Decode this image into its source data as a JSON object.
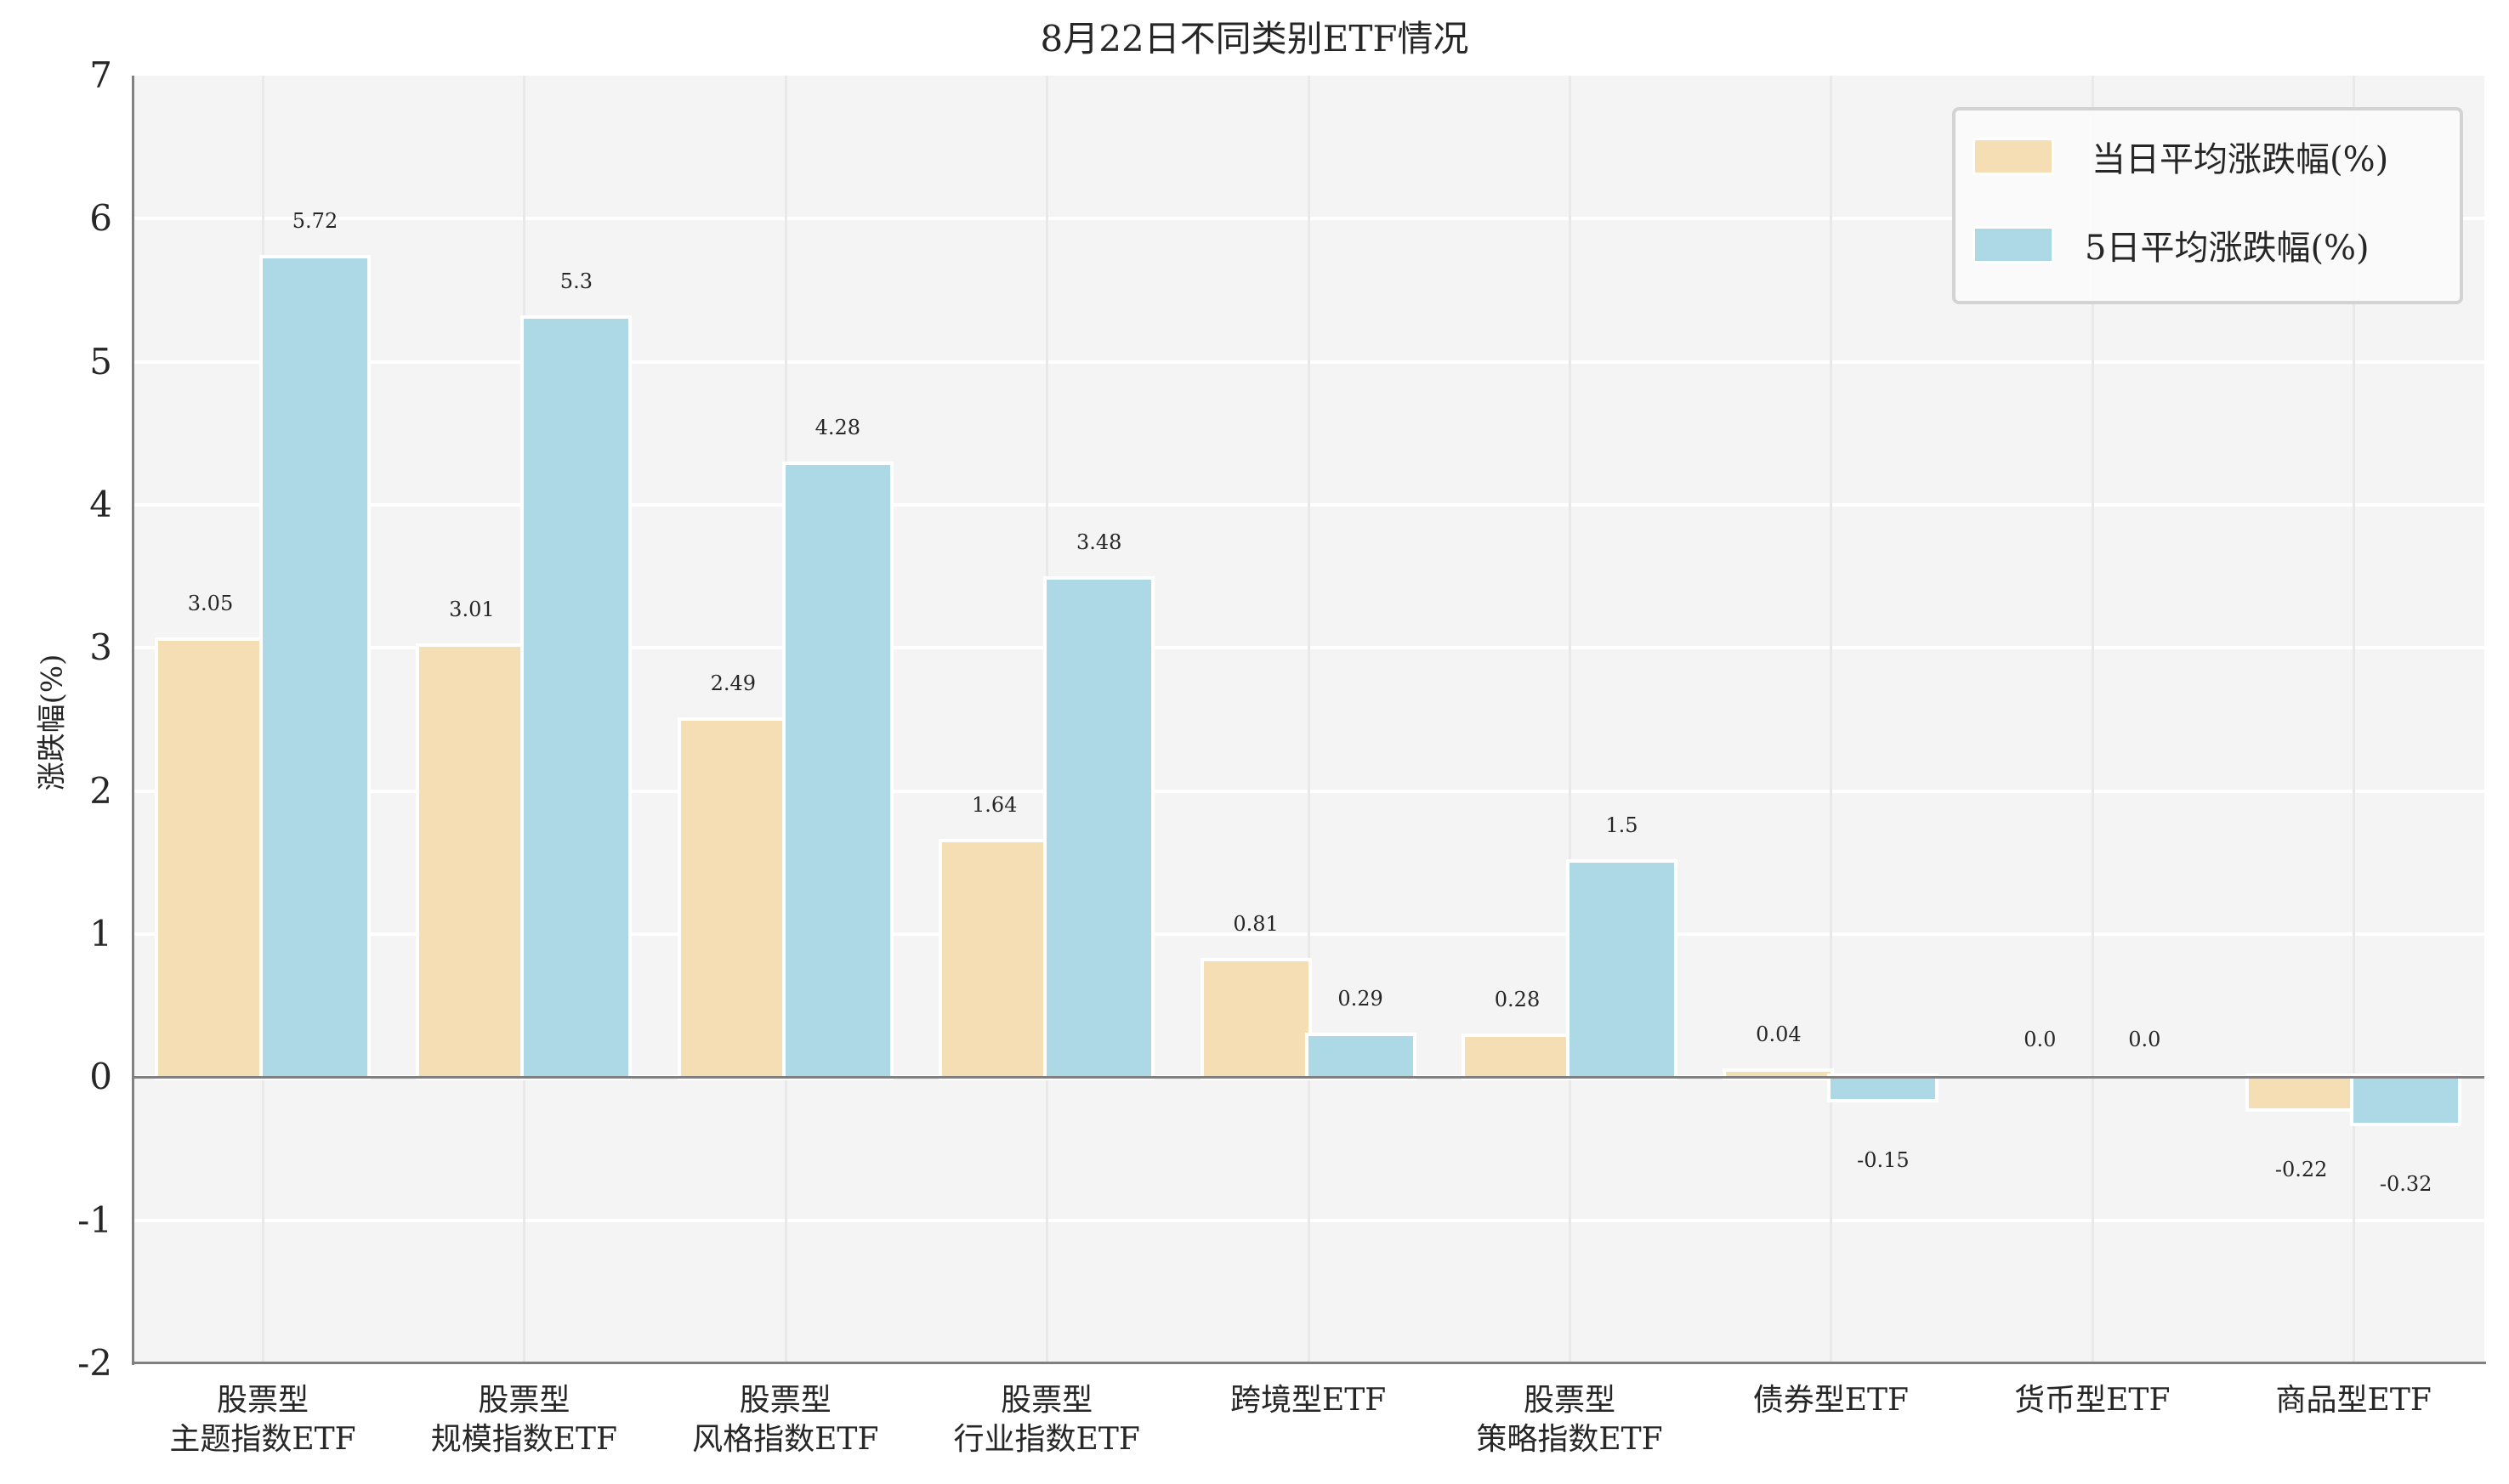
{
  "chart_data": {
    "type": "bar",
    "title": "8月22日不同类别ETF情况",
    "xlabel": "",
    "ylabel": "涨跌幅(%)",
    "ylim": [
      -2,
      7
    ],
    "yticks": [
      "7",
      "6",
      "5",
      "4",
      "3",
      "2",
      "1",
      "0",
      "-1",
      "-2"
    ],
    "grid": true,
    "legend_position": "upper right",
    "categories": [
      [
        "股票型",
        "主题指数ETF"
      ],
      [
        "股票型",
        "规模指数ETF"
      ],
      [
        "股票型",
        "风格指数ETF"
      ],
      [
        "股票型",
        "行业指数ETF"
      ],
      [
        "跨境型ETF"
      ],
      [
        "股票型",
        "策略指数ETF"
      ],
      [
        "债券型ETF"
      ],
      [
        "货币型ETF"
      ],
      [
        "商品型ETF"
      ]
    ],
    "series": [
      {
        "name": "当日平均涨跌幅(%)",
        "color": "#F5DEB3",
        "values": [
          3.05,
          3.01,
          2.49,
          1.64,
          0.81,
          0.28,
          0.04,
          0.0,
          -0.22
        ],
        "labels": [
          "3.05",
          "3.01",
          "2.49",
          "1.64",
          "0.81",
          "0.28",
          "0.04",
          "0.0",
          "-0.22"
        ]
      },
      {
        "name": "5日平均涨跌幅(%)",
        "color": "#ADD8E6",
        "values": [
          5.72,
          5.3,
          4.28,
          3.48,
          0.29,
          1.5,
          -0.15,
          0.0,
          -0.32
        ],
        "labels": [
          "5.72",
          "5.3",
          "4.28",
          "3.48",
          "0.29",
          "1.5",
          "-0.15",
          "0.0",
          "-0.32"
        ]
      }
    ]
  },
  "colors": {
    "plot_background": "#F4F4F4",
    "axis": "#808080",
    "legend_border": "#D3D3D3"
  }
}
